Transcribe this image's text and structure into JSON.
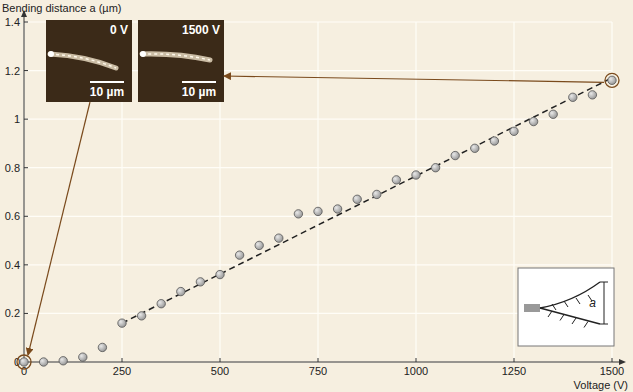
{
  "chart_data": {
    "type": "scatter",
    "x_label": "Voltage (V)",
    "y_label": "Bending distance a (µm)",
    "xlim": [
      0,
      1500
    ],
    "ylim": [
      0,
      1.4
    ],
    "xticks": [
      0,
      250,
      500,
      750,
      1000,
      1250,
      1500
    ],
    "yticks": [
      0,
      0.2,
      0.4,
      0.6,
      0.8,
      1,
      1.2,
      1.4
    ],
    "grid": true,
    "series": [
      {
        "type": "scatter",
        "marker": "circle",
        "color": "#9a9a9a",
        "x": [
          0,
          50,
          100,
          150,
          200,
          250,
          300,
          350,
          400,
          450,
          500,
          550,
          600,
          650,
          700,
          750,
          800,
          850,
          900,
          950,
          1000,
          1050,
          1100,
          1150,
          1200,
          1250,
          1300,
          1350,
          1400,
          1450,
          1500
        ],
        "values": [
          0,
          0,
          0.005,
          0.02,
          0.06,
          0.16,
          0.19,
          0.24,
          0.29,
          0.33,
          0.36,
          0.44,
          0.48,
          0.51,
          0.61,
          0.62,
          0.63,
          0.67,
          0.69,
          0.75,
          0.77,
          0.8,
          0.85,
          0.88,
          0.91,
          0.95,
          0.99,
          1.02,
          1.09,
          1.1,
          1.16
        ]
      },
      {
        "type": "line",
        "line_style": "dashed",
        "color": "#222222",
        "x": [
          250,
          1500
        ],
        "values": [
          0.16,
          1.17
        ]
      }
    ],
    "annotations": [
      "0 V",
      "10 µm",
      "1500 V",
      "10 µm",
      "a"
    ]
  }
}
